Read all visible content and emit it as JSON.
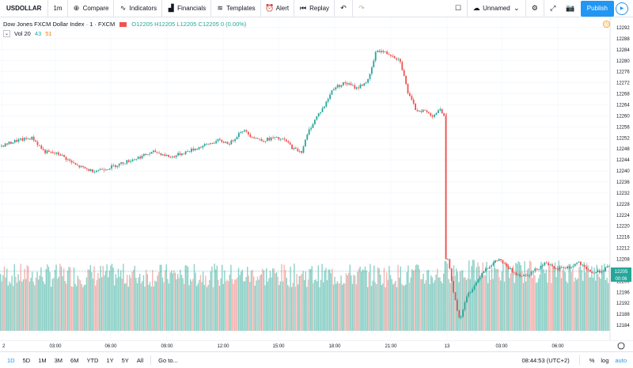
{
  "toolbar": {
    "symbol": "USDOLLAR",
    "interval": "1m",
    "compare": "Compare",
    "indicators": "Indicators",
    "financials": "Financials",
    "templates": "Templates",
    "alert": "Alert",
    "replay": "Replay",
    "layout_name": "Unnamed",
    "publish": "Publish"
  },
  "legend": {
    "title": "Dow Jones FXCM Dollar Index · 1 · FXCM",
    "ohlc": "O12205 H12205 L12205 C12205 0 (0.00%)",
    "vol_label": "Vol 20",
    "vol_value1": "43",
    "vol_value2": "51"
  },
  "price_axis": {
    "ticks": [
      "12292",
      "12288",
      "12284",
      "12280",
      "12276",
      "12272",
      "12268",
      "12264",
      "12260",
      "12256",
      "12252",
      "12248",
      "12244",
      "12240",
      "12236",
      "12232",
      "12228",
      "12224",
      "12220",
      "12216",
      "12212",
      "12208",
      "12204",
      "12200",
      "12196",
      "12192",
      "12188",
      "12184"
    ],
    "last_price": "12205",
    "countdown": "00:06"
  },
  "time_axis": {
    "labels": [
      "2",
      "03:00",
      "06:00",
      "09:00",
      "12:00",
      "15:00",
      "18:00",
      "21:00",
      "13",
      "03:00",
      "06:00"
    ]
  },
  "bottom": {
    "ranges": [
      "1D",
      "5D",
      "1M",
      "3M",
      "6M",
      "YTD",
      "1Y",
      "5Y",
      "All"
    ],
    "goto": "Go to...",
    "time": "08:44:53 (UTC+2)",
    "percent": "%",
    "log": "log",
    "auto": "auto"
  },
  "colors": {
    "up": "#26a69a",
    "down": "#ef5350",
    "volume_up": "#8fd1c8",
    "volume_down": "#f2b8b5",
    "accent": "#2196f3"
  },
  "chart_data": {
    "type": "candlestick",
    "series_name": "",
    "ylim": [
      12182,
      12294
    ],
    "trend_points": [
      [
        0,
        12249
      ],
      [
        10,
        12250
      ],
      [
        20,
        12251
      ],
      [
        40,
        12252
      ],
      [
        55,
        12247
      ],
      [
        75,
        12246
      ],
      [
        95,
        12242
      ],
      [
        115,
        12240
      ],
      [
        135,
        12241
      ],
      [
        155,
        12243
      ],
      [
        175,
        12245
      ],
      [
        195,
        12247
      ],
      [
        215,
        12245
      ],
      [
        235,
        12247
      ],
      [
        255,
        12249
      ],
      [
        275,
        12251
      ],
      [
        290,
        12250
      ],
      [
        305,
        12255
      ],
      [
        315,
        12253
      ],
      [
        330,
        12251
      ],
      [
        345,
        12252
      ],
      [
        360,
        12251
      ],
      [
        370,
        12248
      ],
      [
        380,
        12247
      ],
      [
        390,
        12255
      ],
      [
        400,
        12260
      ],
      [
        410,
        12264
      ],
      [
        420,
        12270
      ],
      [
        435,
        12272
      ],
      [
        450,
        12270
      ],
      [
        465,
        12273
      ],
      [
        475,
        12284
      ],
      [
        485,
        12283
      ],
      [
        495,
        12282
      ],
      [
        505,
        12280
      ],
      [
        515,
        12268
      ],
      [
        525,
        12262
      ],
      [
        535,
        12262
      ],
      [
        545,
        12260
      ],
      [
        555,
        12262
      ],
      [
        562,
        12260
      ],
      [
        565,
        12210
      ],
      [
        570,
        12200
      ],
      [
        575,
        12192
      ],
      [
        580,
        12186
      ],
      [
        590,
        12195
      ],
      [
        600,
        12199
      ],
      [
        610,
        12204
      ],
      [
        620,
        12206
      ],
      [
        630,
        12208
      ],
      [
        640,
        12205
      ],
      [
        650,
        12203
      ],
      [
        660,
        12202
      ],
      [
        670,
        12203
      ],
      [
        680,
        12205
      ],
      [
        690,
        12207
      ],
      [
        700,
        12204
      ],
      [
        710,
        12205
      ],
      [
        720,
        12205
      ],
      [
        730,
        12207
      ],
      [
        740,
        12204
      ],
      [
        750,
        12203
      ],
      [
        760,
        12204
      ],
      [
        768,
        12205
      ]
    ]
  }
}
